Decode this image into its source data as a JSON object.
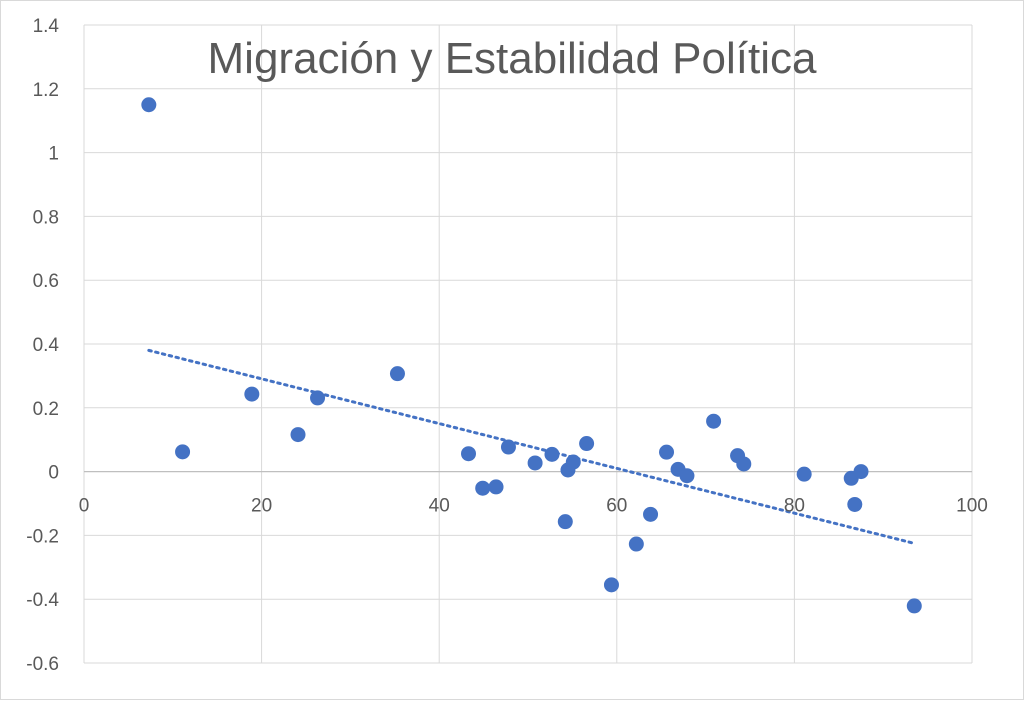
{
  "chart_data": {
    "type": "scatter",
    "title": "Migración y Estabilidad Política",
    "xlabel": "",
    "ylabel": "",
    "xlim": [
      0,
      100
    ],
    "ylim": [
      -0.6,
      1.4
    ],
    "x_ticks": [
      0,
      20,
      40,
      60,
      80,
      100
    ],
    "x_tick_labels": [
      "0",
      "20",
      "40",
      "60",
      "80",
      "100"
    ],
    "y_ticks": [
      -0.6,
      -0.4,
      -0.2,
      0,
      0.2,
      0.4,
      0.6,
      0.8,
      1,
      1.2,
      1.4
    ],
    "y_tick_labels": [
      "-0.6",
      "-0.4",
      "-0.2",
      "0",
      "0.2",
      "0.4",
      "0.6",
      "0.8",
      "1",
      "1.2",
      "1.4"
    ],
    "grid": true,
    "marker_color": "#4472c4",
    "trendline": {
      "type": "linear",
      "style": "dotted",
      "color": "#4472c4",
      "x": [
        7.3,
        93.5
      ],
      "y": [
        0.38,
        -0.225
      ]
    },
    "series": [
      {
        "points": [
          {
            "x": 7.3,
            "y": 1.15
          },
          {
            "x": 11.1,
            "y": 0.062
          },
          {
            "x": 18.9,
            "y": 0.243
          },
          {
            "x": 24.1,
            "y": 0.116
          },
          {
            "x": 26.3,
            "y": 0.231
          },
          {
            "x": 35.3,
            "y": 0.307
          },
          {
            "x": 43.3,
            "y": 0.056
          },
          {
            "x": 44.9,
            "y": -0.052
          },
          {
            "x": 46.4,
            "y": -0.048
          },
          {
            "x": 47.8,
            "y": 0.077
          },
          {
            "x": 50.8,
            "y": 0.027
          },
          {
            "x": 52.7,
            "y": 0.054
          },
          {
            "x": 54.2,
            "y": -0.157
          },
          {
            "x": 54.5,
            "y": 0.005
          },
          {
            "x": 55.1,
            "y": 0.03
          },
          {
            "x": 56.6,
            "y": 0.088
          },
          {
            "x": 59.4,
            "y": -0.355
          },
          {
            "x": 62.2,
            "y": -0.227
          },
          {
            "x": 63.8,
            "y": -0.134
          },
          {
            "x": 65.6,
            "y": 0.061
          },
          {
            "x": 66.9,
            "y": 0.007
          },
          {
            "x": 67.9,
            "y": -0.013
          },
          {
            "x": 70.9,
            "y": 0.158
          },
          {
            "x": 73.6,
            "y": 0.05
          },
          {
            "x": 74.3,
            "y": 0.024
          },
          {
            "x": 81.1,
            "y": -0.008
          },
          {
            "x": 86.4,
            "y": -0.021
          },
          {
            "x": 86.8,
            "y": -0.103
          },
          {
            "x": 87.5,
            "y": 0.0
          },
          {
            "x": 93.5,
            "y": -0.421
          }
        ]
      }
    ]
  }
}
